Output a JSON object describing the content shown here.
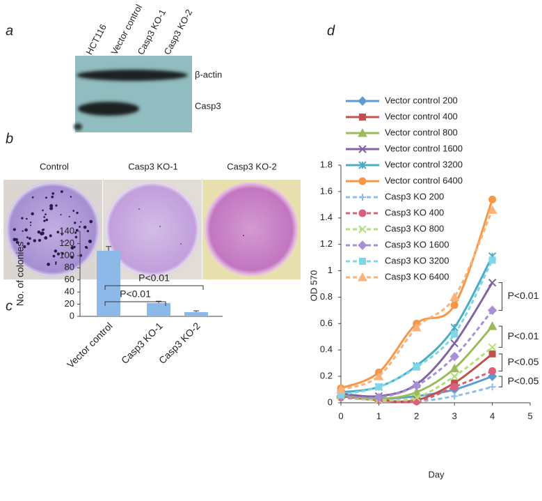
{
  "figure": {
    "panel_labels": [
      "a",
      "b",
      "c",
      "d"
    ],
    "blot": {
      "lanes": [
        "HCT116",
        "Vector control",
        "Casp3 KO-1",
        "Casp3 KO-2"
      ],
      "bands": [
        "β-actin",
        "Casp3"
      ]
    },
    "plates": [
      "Control",
      "Casp3 KO-1",
      "Casp3 KO-2"
    ]
  },
  "chart_data": [
    {
      "type": "bar",
      "ylabel": "No. of colonies",
      "categories": [
        "Vector control",
        "Casp3 KO-1",
        "Casp3 KO-2"
      ],
      "values": [
        108,
        22,
        7
      ],
      "errors": [
        7,
        3,
        2
      ],
      "color": "#8db9e8",
      "ylim": [
        0,
        140
      ],
      "yticks": [
        0,
        20,
        40,
        60,
        80,
        100,
        120,
        140
      ],
      "annotations": [
        {
          "text": "P<0.01",
          "between": [
            "Vector control",
            "Casp3 KO-1"
          ]
        },
        {
          "text": "P<0.01",
          "between": [
            "Vector control",
            "Casp3 KO-2"
          ]
        }
      ]
    },
    {
      "type": "line",
      "xlabel": "Day",
      "ylabel": "OD 570",
      "x": [
        0,
        1,
        2,
        3,
        4
      ],
      "xlim": [
        0,
        5
      ],
      "xticks": [
        0,
        1,
        2,
        3,
        4,
        5
      ],
      "ylim": [
        0,
        1.8
      ],
      "yticks": [
        0,
        0.2,
        0.4,
        0.6,
        0.8,
        1,
        1.2,
        1.4,
        1.6,
        1.8
      ],
      "legend": "upper left",
      "series": [
        {
          "name": "Vector control 200",
          "color": "#5b9bd5",
          "marker": "diamond",
          "linestyle": "solid",
          "values": [
            0.05,
            0.03,
            0.05,
            0.1,
            0.2
          ]
        },
        {
          "name": "Vector control 400",
          "color": "#c0504d",
          "marker": "square",
          "linestyle": "solid",
          "values": [
            0.05,
            0.02,
            0.02,
            0.15,
            0.37
          ]
        },
        {
          "name": "Vector control 800",
          "color": "#9bbb59",
          "marker": "triangle",
          "linestyle": "solid",
          "values": [
            0.06,
            0.03,
            0.08,
            0.26,
            0.58
          ]
        },
        {
          "name": "Vector control 1600",
          "color": "#8064a2",
          "marker": "x",
          "linestyle": "solid",
          "values": [
            0.07,
            0.05,
            0.14,
            0.45,
            0.91
          ]
        },
        {
          "name": "Vector control 3200",
          "color": "#4bacc6",
          "marker": "star",
          "linestyle": "solid",
          "values": [
            0.08,
            0.12,
            0.28,
            0.57,
            1.11
          ]
        },
        {
          "name": "Vector control 6400",
          "color": "#f79646",
          "marker": "circle",
          "linestyle": "solid",
          "values": [
            0.11,
            0.23,
            0.6,
            0.74,
            1.54
          ]
        },
        {
          "name": "Casp3 KO 200",
          "color": "#8fbde8",
          "marker": "plus",
          "linestyle": "dashed",
          "values": [
            0.04,
            0.02,
            0.01,
            0.05,
            0.12
          ]
        },
        {
          "name": "Casp3 KO 400",
          "color": "#d9607a",
          "marker": "circle",
          "linestyle": "dashed",
          "values": [
            0.04,
            0.02,
            0.01,
            0.12,
            0.24
          ]
        },
        {
          "name": "Casp3 KO 800",
          "color": "#b5dd7a",
          "marker": "x",
          "linestyle": "dashed",
          "values": [
            0.05,
            0.02,
            0.04,
            0.2,
            0.42
          ]
        },
        {
          "name": "Casp3 KO 1600",
          "color": "#a78fd6",
          "marker": "diamond",
          "linestyle": "dashed",
          "values": [
            0.05,
            0.04,
            0.13,
            0.35,
            0.7
          ]
        },
        {
          "name": "Casp3 KO 3200",
          "color": "#7fd6e6",
          "marker": "square",
          "linestyle": "dashed",
          "values": [
            0.06,
            0.12,
            0.27,
            0.52,
            1.08
          ]
        },
        {
          "name": "Casp3 KO 6400",
          "color": "#f9b27a",
          "marker": "triangle",
          "linestyle": "dashed",
          "values": [
            0.1,
            0.2,
            0.57,
            0.8,
            1.46
          ]
        }
      ],
      "annotations": [
        {
          "text": "P<0.01",
          "between": [
            "Vector control 1600",
            "Casp3 KO 1600"
          ]
        },
        {
          "text": "P<0.01",
          "between": [
            "Vector control 800",
            "Casp3 KO 800"
          ]
        },
        {
          "text": "P<0.05",
          "between": [
            "Vector control 400",
            "Casp3 KO 400"
          ]
        },
        {
          "text": "P<0.05",
          "between": [
            "Vector control 200",
            "Casp3 KO 200"
          ]
        }
      ]
    }
  ]
}
